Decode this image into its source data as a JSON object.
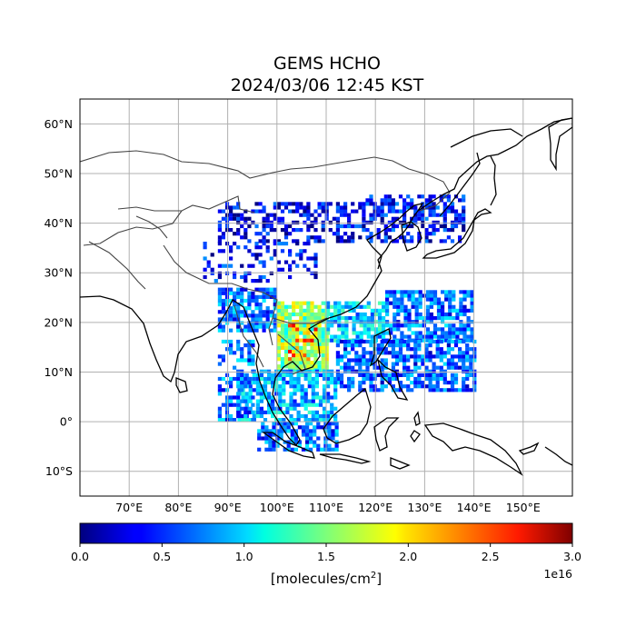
{
  "title": {
    "line1": "GEMS HCHO",
    "line2": "2024/03/06 12:45 KST"
  },
  "map": {
    "lon_range": [
      60,
      160
    ],
    "lat_range": [
      -15,
      65
    ],
    "lon_ticks": [
      "70°E",
      "80°E",
      "90°E",
      "100°E",
      "110°E",
      "120°E",
      "130°E",
      "140°E",
      "150°E"
    ],
    "lat_ticks": [
      "60°N",
      "50°N",
      "40°N",
      "30°N",
      "20°N",
      "10°N",
      "0°",
      "10°S"
    ],
    "grid": true,
    "coastline_color": "#000000",
    "border_color": "#444444"
  },
  "colorbar": {
    "colormap": "jet",
    "min": 0.0,
    "max": 3.0,
    "tick_labels": [
      "0.0",
      "0.5",
      "1.0",
      "1.5",
      "2.0",
      "2.5",
      "3.0"
    ],
    "label_prefix": "[molecules/cm",
    "label_sup": "2",
    "label_suffix": "]",
    "scale_factor": "1e16"
  }
}
